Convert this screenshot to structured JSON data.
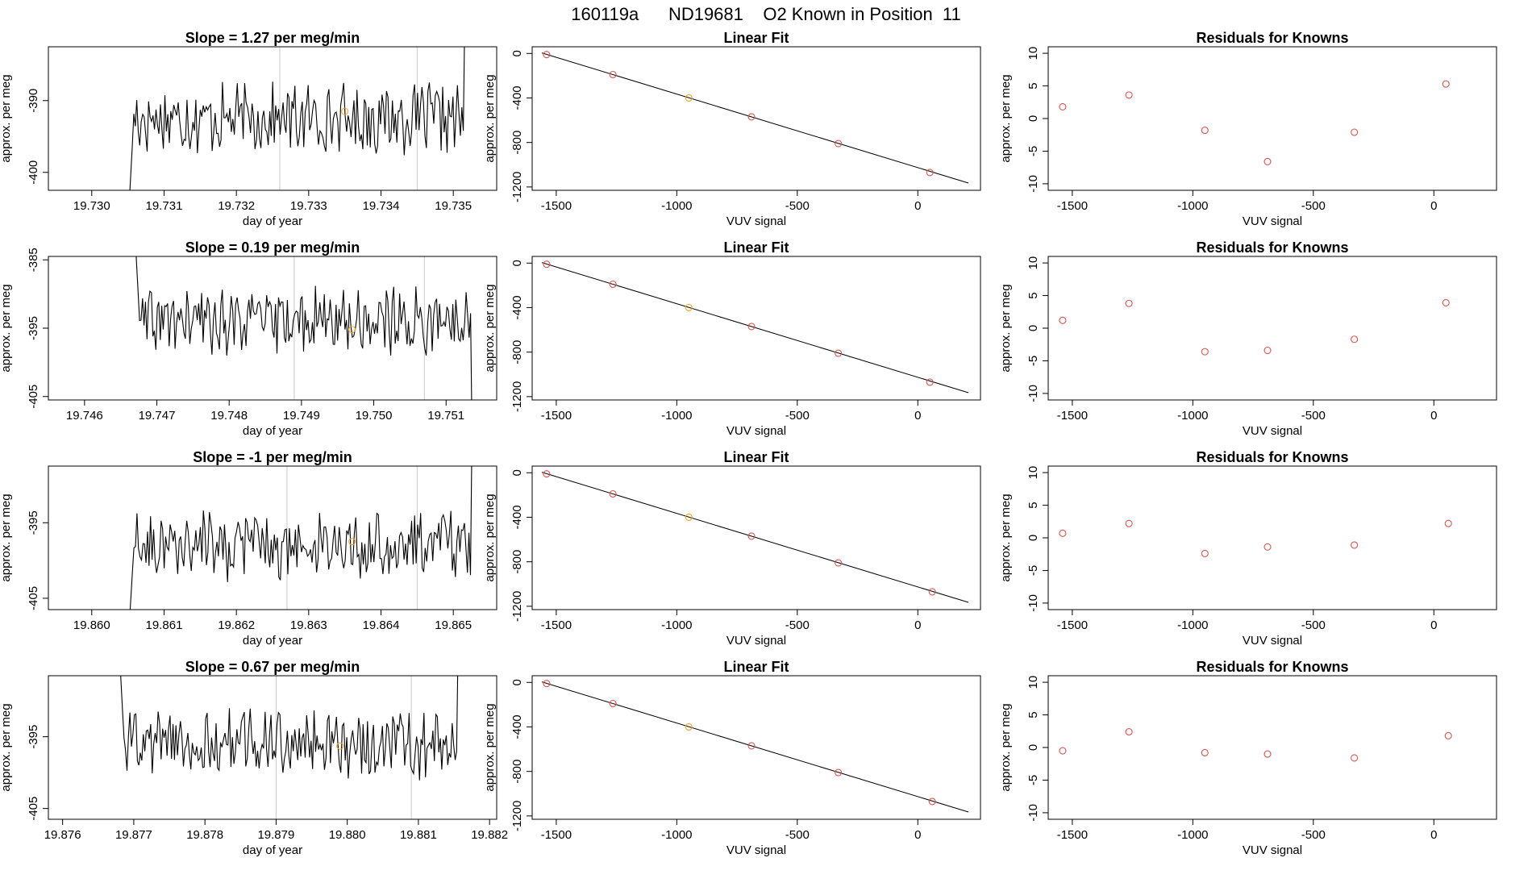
{
  "header": {
    "title": "160119a      ND19681    O2 Known in Position  11"
  },
  "colors": {
    "trace": "#000000",
    "highlight": "#f5a623",
    "knowns": "#d9534f",
    "vline": "#c8c8c8"
  },
  "chart_data": [
    {
      "type": "line",
      "title": "Slope =  1.27  per meg/min",
      "xlabel": "day of year",
      "ylabel": "approx. per meg",
      "xlim": [
        19.7294,
        19.7356
      ],
      "ylim": [
        -402.5,
        -382.5
      ],
      "xticks": [
        19.73,
        19.731,
        19.732,
        19.733,
        19.734,
        19.735
      ],
      "xtick_labels": [
        "19.730",
        "19.731",
        "19.732",
        "19.733",
        "19.734",
        "19.735"
      ],
      "yticks": [
        -390,
        -400
      ],
      "ytick_labels": [
        "-390",
        "-400"
      ],
      "x_start": 19.7305,
      "x_end": 19.7352,
      "base": -392.5,
      "jitter": 4,
      "vlines": [
        19.7326,
        19.7345
      ],
      "highlight_point": {
        "x": 19.7335,
        "y": -391.5
      },
      "grid": false
    },
    {
      "type": "scatter_fit",
      "title": "Linear Fit",
      "xlabel": "VUV signal",
      "ylabel": "approx. per meg",
      "xlim": [
        -1600,
        260
      ],
      "ylim": [
        -1230,
        60
      ],
      "xticks": [
        -1500,
        -1000,
        -500,
        0
      ],
      "xtick_labels": [
        "-1500",
        "-1000",
        "-500",
        "0"
      ],
      "yticks": [
        0,
        -400,
        -800,
        -1200
      ],
      "ytick_labels": [
        "0",
        "-400",
        "-800",
        "-1200"
      ],
      "points": [
        {
          "x": -1540,
          "y": -10
        },
        {
          "x": -1265,
          "y": -190
        },
        {
          "x": -950,
          "y": -400
        },
        {
          "x": -690,
          "y": -570
        },
        {
          "x": -330,
          "y": -810
        },
        {
          "x": 50,
          "y": -1070
        }
      ],
      "highlight_index": 2,
      "fit_line": {
        "x0": -1560,
        "y0": 5,
        "x1": 210,
        "y1": -1165
      }
    },
    {
      "type": "scatter",
      "title": "Residuals for Knowns",
      "xlabel": "VUV signal",
      "ylabel": "approx. per meg",
      "xlim": [
        -1600,
        260
      ],
      "ylim": [
        -11,
        11
      ],
      "xticks": [
        -1500,
        -1000,
        -500,
        0
      ],
      "xtick_labels": [
        "-1500",
        "-1000",
        "-500",
        "0"
      ],
      "yticks": [
        10,
        5,
        0,
        -5,
        -10
      ],
      "ytick_labels": [
        "10",
        "5",
        "0",
        "-5",
        "-10"
      ],
      "points": [
        {
          "x": -1540,
          "y": 1.8
        },
        {
          "x": -1265,
          "y": 3.6
        },
        {
          "x": -950,
          "y": -1.8
        },
        {
          "x": -690,
          "y": -6.6
        },
        {
          "x": -330,
          "y": -2.1
        },
        {
          "x": 50,
          "y": 5.3
        }
      ]
    },
    {
      "type": "line",
      "title": "Slope =  0.19  per meg/min",
      "xlabel": "day of year",
      "ylabel": "approx. per meg",
      "xlim": [
        19.7455,
        19.7517
      ],
      "ylim": [
        -405.5,
        -384.5
      ],
      "xticks": [
        19.746,
        19.747,
        19.748,
        19.749,
        19.75,
        19.751
      ],
      "xtick_labels": [
        "19.746",
        "19.747",
        "19.748",
        "19.749",
        "19.750",
        "19.751"
      ],
      "yticks": [
        -385,
        -395,
        -405
      ],
      "ytick_labels": [
        "-385",
        "-395",
        "-405"
      ],
      "x_start": 19.7467,
      "x_end": 19.7514,
      "base": -394,
      "jitter": 4,
      "vlines": [
        19.7489,
        19.7507
      ],
      "highlight_point": {
        "x": 19.7497,
        "y": -395.2
      },
      "grid": false
    },
    {
      "type": "scatter_fit",
      "title": "Linear Fit",
      "xlabel": "VUV signal",
      "ylabel": "approx. per meg",
      "xlim": [
        -1600,
        260
      ],
      "ylim": [
        -1230,
        60
      ],
      "xticks": [
        -1500,
        -1000,
        -500,
        0
      ],
      "xtick_labels": [
        "-1500",
        "-1000",
        "-500",
        "0"
      ],
      "yticks": [
        0,
        -400,
        -800,
        -1200
      ],
      "ytick_labels": [
        "0",
        "-400",
        "-800",
        "-1200"
      ],
      "points": [
        {
          "x": -1540,
          "y": -10
        },
        {
          "x": -1265,
          "y": -190
        },
        {
          "x": -950,
          "y": -400
        },
        {
          "x": -690,
          "y": -570
        },
        {
          "x": -330,
          "y": -810
        },
        {
          "x": 50,
          "y": -1070
        }
      ],
      "highlight_index": 2,
      "fit_line": {
        "x0": -1560,
        "y0": 5,
        "x1": 210,
        "y1": -1165
      }
    },
    {
      "type": "scatter",
      "title": "Residuals for Knowns",
      "xlabel": "VUV signal",
      "ylabel": "approx. per meg",
      "xlim": [
        -1600,
        260
      ],
      "ylim": [
        -11,
        11
      ],
      "xticks": [
        -1500,
        -1000,
        -500,
        0
      ],
      "xtick_labels": [
        "-1500",
        "-1000",
        "-500",
        "0"
      ],
      "yticks": [
        10,
        5,
        0,
        -5,
        -10
      ],
      "ytick_labels": [
        "10",
        "5",
        "0",
        "-5",
        "-10"
      ],
      "points": [
        {
          "x": -1540,
          "y": 1.2
        },
        {
          "x": -1265,
          "y": 3.8
        },
        {
          "x": -950,
          "y": -3.6
        },
        {
          "x": -690,
          "y": -3.4
        },
        {
          "x": -330,
          "y": -1.7
        },
        {
          "x": 50,
          "y": 3.9
        }
      ]
    },
    {
      "type": "line",
      "title": "Slope =  -1  per meg/min",
      "xlabel": "day of year",
      "ylabel": "approx. per meg",
      "xlim": [
        19.8594,
        19.8656
      ],
      "ylim": [
        -406.5,
        -387.5
      ],
      "xticks": [
        19.86,
        19.861,
        19.862,
        19.863,
        19.864,
        19.865
      ],
      "xtick_labels": [
        "19.860",
        "19.861",
        "19.862",
        "19.863",
        "19.864",
        "19.865"
      ],
      "yticks": [
        -395,
        -405
      ],
      "ytick_labels": [
        "-395",
        "-405"
      ],
      "x_start": 19.8605,
      "x_end": 19.8653,
      "base": -398,
      "jitter": 4,
      "vlines": [
        19.8627,
        19.8645
      ],
      "highlight_point": {
        "x": 19.8636,
        "y": -397.5
      },
      "grid": false
    },
    {
      "type": "scatter_fit",
      "title": "Linear Fit",
      "xlabel": "VUV signal",
      "ylabel": "approx. per meg",
      "xlim": [
        -1600,
        260
      ],
      "ylim": [
        -1230,
        60
      ],
      "xticks": [
        -1500,
        -1000,
        -500,
        0
      ],
      "xtick_labels": [
        "-1500",
        "-1000",
        "-500",
        "0"
      ],
      "yticks": [
        0,
        -400,
        -800,
        -1200
      ],
      "ytick_labels": [
        "0",
        "-400",
        "-800",
        "-1200"
      ],
      "points": [
        {
          "x": -1540,
          "y": -10
        },
        {
          "x": -1265,
          "y": -190
        },
        {
          "x": -950,
          "y": -400
        },
        {
          "x": -690,
          "y": -570
        },
        {
          "x": -330,
          "y": -810
        },
        {
          "x": 60,
          "y": -1070
        }
      ],
      "highlight_index": 2,
      "fit_line": {
        "x0": -1560,
        "y0": 5,
        "x1": 210,
        "y1": -1165
      }
    },
    {
      "type": "scatter",
      "title": "Residuals for Knowns",
      "xlabel": "VUV signal",
      "ylabel": "approx. per meg",
      "xlim": [
        -1600,
        260
      ],
      "ylim": [
        -11,
        11
      ],
      "xticks": [
        -1500,
        -1000,
        -500,
        0
      ],
      "xtick_labels": [
        "-1500",
        "-1000",
        "-500",
        "0"
      ],
      "yticks": [
        10,
        5,
        0,
        -5,
        -10
      ],
      "ytick_labels": [
        "10",
        "5",
        "0",
        "-5",
        "-10"
      ],
      "points": [
        {
          "x": -1540,
          "y": 0.7
        },
        {
          "x": -1265,
          "y": 2.2
        },
        {
          "x": -950,
          "y": -2.4
        },
        {
          "x": -690,
          "y": -1.4
        },
        {
          "x": -330,
          "y": -1.1
        },
        {
          "x": 60,
          "y": 2.2
        }
      ]
    },
    {
      "type": "line",
      "title": "Slope =  0.67  per meg/min",
      "xlabel": "day of year",
      "ylabel": "approx. per meg",
      "xlim": [
        19.8758,
        19.8821
      ],
      "ylim": [
        -406.5,
        -386.5
      ],
      "xticks": [
        19.876,
        19.877,
        19.878,
        19.879,
        19.88,
        19.881,
        19.882
      ],
      "xtick_labels": [
        "19.876",
        "19.877",
        "19.878",
        "19.879",
        "19.880",
        "19.881",
        "19.882"
      ],
      "yticks": [
        -395,
        -405
      ],
      "ytick_labels": [
        "-395",
        "-405"
      ],
      "x_start": 19.8768,
      "x_end": 19.8816,
      "base": -396,
      "jitter": 4,
      "vlines": [
        19.879,
        19.8809
      ],
      "highlight_point": {
        "x": 19.8799,
        "y": -396.3
      },
      "grid": false
    },
    {
      "type": "scatter_fit",
      "title": "Linear Fit",
      "xlabel": "VUV signal",
      "ylabel": "approx. per meg",
      "xlim": [
        -1600,
        260
      ],
      "ylim": [
        -1230,
        60
      ],
      "xticks": [
        -1500,
        -1000,
        -500,
        0
      ],
      "xtick_labels": [
        "-1500",
        "-1000",
        "-500",
        "0"
      ],
      "yticks": [
        0,
        -400,
        -800,
        -1200
      ],
      "ytick_labels": [
        "0",
        "-400",
        "-800",
        "-1200"
      ],
      "points": [
        {
          "x": -1540,
          "y": -10
        },
        {
          "x": -1265,
          "y": -190
        },
        {
          "x": -950,
          "y": -400
        },
        {
          "x": -690,
          "y": -570
        },
        {
          "x": -330,
          "y": -810
        },
        {
          "x": 60,
          "y": -1070
        }
      ],
      "highlight_index": 2,
      "fit_line": {
        "x0": -1560,
        "y0": 5,
        "x1": 210,
        "y1": -1165
      }
    },
    {
      "type": "scatter",
      "title": "Residuals for Knowns",
      "xlabel": "VUV signal",
      "ylabel": "approx. per meg",
      "xlim": [
        -1600,
        260
      ],
      "ylim": [
        -11,
        11
      ],
      "xticks": [
        -1500,
        -1000,
        -500,
        0
      ],
      "xtick_labels": [
        "-1500",
        "-1000",
        "-500",
        "0"
      ],
      "yticks": [
        10,
        5,
        0,
        -5,
        -10
      ],
      "ytick_labels": [
        "10",
        "5",
        "0",
        "-5",
        "-10"
      ],
      "points": [
        {
          "x": -1540,
          "y": -0.5
        },
        {
          "x": -1265,
          "y": 2.4
        },
        {
          "x": -950,
          "y": -0.8
        },
        {
          "x": -690,
          "y": -1.0
        },
        {
          "x": -330,
          "y": -1.6
        },
        {
          "x": 60,
          "y": 1.8
        }
      ]
    }
  ]
}
